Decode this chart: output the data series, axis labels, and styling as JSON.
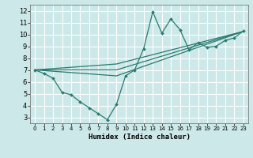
{
  "xlabel": "Humidex (Indice chaleur)",
  "xlim": [
    -0.5,
    23.5
  ],
  "ylim": [
    2.5,
    12.5
  ],
  "xticks": [
    0,
    1,
    2,
    3,
    4,
    5,
    6,
    7,
    8,
    9,
    10,
    11,
    12,
    13,
    14,
    15,
    16,
    17,
    18,
    19,
    20,
    21,
    22,
    23
  ],
  "yticks": [
    3,
    4,
    5,
    6,
    7,
    8,
    9,
    10,
    11,
    12
  ],
  "background_color": "#cce8e8",
  "grid_color": "#ffffff",
  "line_color": "#2a7a70",
  "line1_x": [
    0,
    1,
    2,
    3,
    4,
    5,
    6,
    7,
    8,
    9,
    10,
    11,
    12,
    13,
    14,
    15,
    16,
    17,
    18,
    19,
    20,
    21,
    22,
    23
  ],
  "line1_y": [
    7.0,
    6.7,
    6.3,
    5.1,
    4.9,
    4.3,
    3.8,
    3.3,
    2.8,
    4.1,
    6.5,
    7.0,
    8.8,
    11.9,
    10.1,
    11.3,
    10.4,
    8.7,
    9.3,
    8.9,
    9.0,
    9.5,
    9.7,
    10.3
  ],
  "line2_x": [
    0,
    9,
    23
  ],
  "line2_y": [
    7.0,
    6.5,
    10.25
  ],
  "line3_x": [
    0,
    9,
    23
  ],
  "line3_y": [
    7.0,
    7.0,
    10.25
  ],
  "line4_x": [
    0,
    9,
    23
  ],
  "line4_y": [
    7.0,
    7.5,
    10.25
  ]
}
